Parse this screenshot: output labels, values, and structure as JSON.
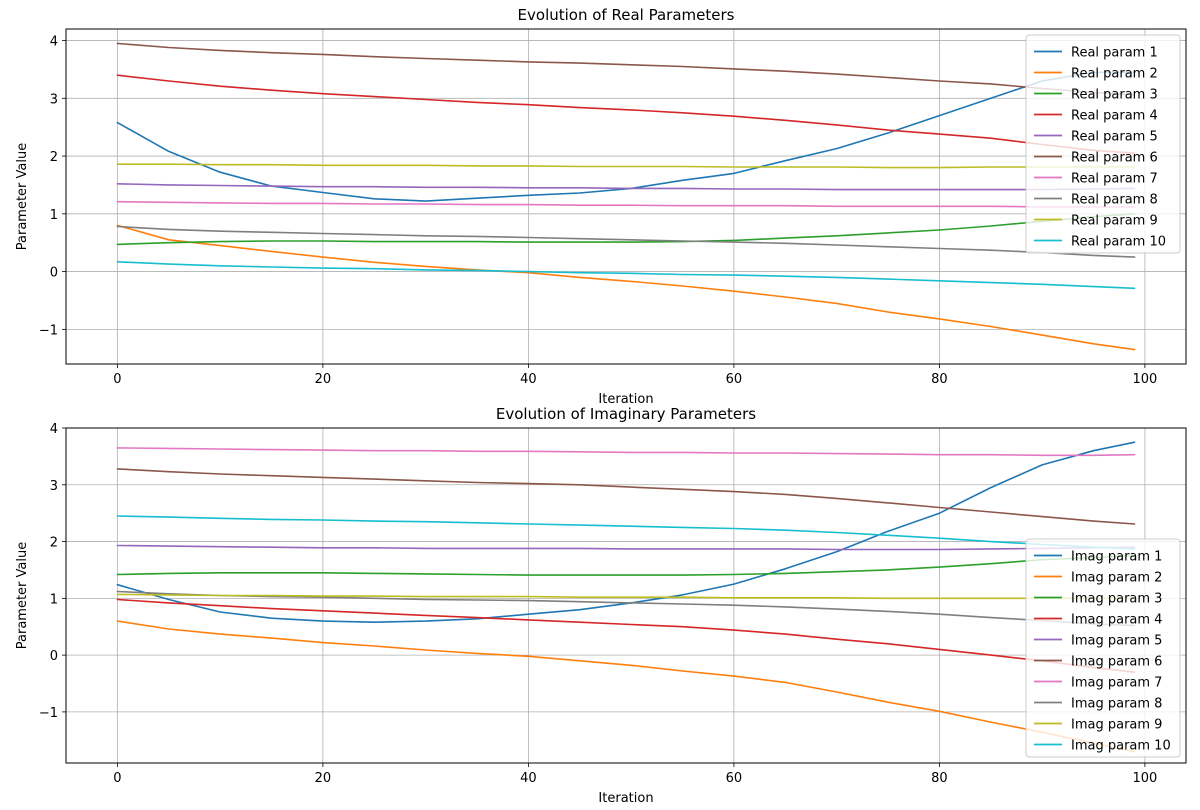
{
  "colors": [
    "#1f77b4",
    "#ff7f0e",
    "#2ca02c",
    "#d62728",
    "#9467bd",
    "#8c564b",
    "#e377c2",
    "#7f7f7f",
    "#bcbd22",
    "#17becf"
  ],
  "chart_data": [
    {
      "type": "line",
      "title": "Evolution of Real Parameters",
      "xlabel": "Iteration",
      "ylabel": "Parameter Value",
      "xlim": [
        -5,
        104
      ],
      "ylim": [
        -1.6,
        4.2
      ],
      "xticks": [
        0,
        20,
        40,
        60,
        80,
        100
      ],
      "yticks": [
        -1,
        0,
        1,
        2,
        3,
        4
      ],
      "xtick_labels": [
        "0",
        "20",
        "40",
        "60",
        "80",
        "100"
      ],
      "ytick_labels": [
        "−1",
        "0",
        "1",
        "2",
        "3",
        "4"
      ],
      "grid": true,
      "legend_position": "top-right",
      "x": [
        0,
        5,
        10,
        15,
        20,
        25,
        30,
        35,
        40,
        45,
        50,
        55,
        60,
        65,
        70,
        75,
        80,
        85,
        90,
        95,
        99
      ],
      "series": [
        {
          "name": "Real param 1",
          "values": [
            2.58,
            2.08,
            1.72,
            1.48,
            1.37,
            1.26,
            1.22,
            1.27,
            1.32,
            1.36,
            1.44,
            1.58,
            1.7,
            1.92,
            2.13,
            2.4,
            2.7,
            3.0,
            3.3,
            3.45,
            3.45
          ]
        },
        {
          "name": "Real param 2",
          "values": [
            0.8,
            0.55,
            0.45,
            0.35,
            0.25,
            0.16,
            0.09,
            0.03,
            -0.02,
            -0.1,
            -0.17,
            -0.25,
            -0.34,
            -0.44,
            -0.55,
            -0.7,
            -0.82,
            -0.95,
            -1.1,
            -1.25,
            -1.35
          ]
        },
        {
          "name": "Real param 3",
          "values": [
            0.47,
            0.5,
            0.52,
            0.53,
            0.53,
            0.52,
            0.52,
            0.52,
            0.51,
            0.51,
            0.51,
            0.52,
            0.54,
            0.58,
            0.62,
            0.67,
            0.72,
            0.79,
            0.87,
            0.95,
            1.0
          ]
        },
        {
          "name": "Real param 4",
          "values": [
            3.4,
            3.3,
            3.21,
            3.14,
            3.08,
            3.03,
            2.98,
            2.93,
            2.89,
            2.84,
            2.8,
            2.75,
            2.69,
            2.62,
            2.54,
            2.45,
            2.38,
            2.31,
            2.2,
            2.1,
            2.05
          ]
        },
        {
          "name": "Real param 5",
          "values": [
            1.52,
            1.5,
            1.49,
            1.48,
            1.47,
            1.47,
            1.46,
            1.46,
            1.45,
            1.45,
            1.44,
            1.44,
            1.43,
            1.43,
            1.42,
            1.42,
            1.42,
            1.42,
            1.42,
            1.43,
            1.44
          ]
        },
        {
          "name": "Real param 6",
          "values": [
            3.95,
            3.88,
            3.83,
            3.79,
            3.76,
            3.72,
            3.69,
            3.66,
            3.63,
            3.61,
            3.58,
            3.55,
            3.51,
            3.47,
            3.42,
            3.36,
            3.3,
            3.25,
            3.17,
            3.1,
            3.06
          ]
        },
        {
          "name": "Real param 7",
          "values": [
            1.21,
            1.2,
            1.19,
            1.18,
            1.18,
            1.17,
            1.17,
            1.16,
            1.16,
            1.15,
            1.15,
            1.14,
            1.14,
            1.14,
            1.13,
            1.13,
            1.13,
            1.13,
            1.12,
            1.12,
            1.12
          ]
        },
        {
          "name": "Real param 8",
          "values": [
            0.78,
            0.73,
            0.7,
            0.68,
            0.66,
            0.64,
            0.62,
            0.61,
            0.59,
            0.57,
            0.55,
            0.53,
            0.51,
            0.49,
            0.46,
            0.43,
            0.4,
            0.37,
            0.33,
            0.28,
            0.25
          ]
        },
        {
          "name": "Real param 9",
          "values": [
            1.86,
            1.86,
            1.85,
            1.85,
            1.84,
            1.84,
            1.84,
            1.83,
            1.83,
            1.82,
            1.82,
            1.82,
            1.81,
            1.81,
            1.81,
            1.8,
            1.8,
            1.81,
            1.81,
            1.81,
            1.81
          ]
        },
        {
          "name": "Real param 10",
          "values": [
            0.17,
            0.13,
            0.1,
            0.08,
            0.06,
            0.05,
            0.03,
            0.02,
            0.0,
            -0.02,
            -0.03,
            -0.05,
            -0.06,
            -0.08,
            -0.1,
            -0.13,
            -0.16,
            -0.19,
            -0.22,
            -0.26,
            -0.29
          ]
        }
      ]
    },
    {
      "type": "line",
      "title": "Evolution of Imaginary Parameters",
      "xlabel": "Iteration",
      "ylabel": "Parameter Value",
      "xlim": [
        -5,
        104
      ],
      "ylim": [
        -1.9,
        4.0
      ],
      "xticks": [
        0,
        20,
        40,
        60,
        80,
        100
      ],
      "yticks": [
        -1,
        0,
        1,
        2,
        3,
        4
      ],
      "xtick_labels": [
        "0",
        "20",
        "40",
        "60",
        "80",
        "100"
      ],
      "ytick_labels": [
        "−1",
        "0",
        "1",
        "2",
        "3",
        "4"
      ],
      "grid": true,
      "legend_position": "lower-right",
      "x": [
        0,
        5,
        10,
        15,
        20,
        25,
        30,
        35,
        40,
        45,
        50,
        55,
        60,
        65,
        70,
        75,
        80,
        85,
        90,
        95,
        99
      ],
      "series": [
        {
          "name": "Imag param 1",
          "values": [
            1.24,
            0.98,
            0.76,
            0.65,
            0.6,
            0.58,
            0.6,
            0.64,
            0.72,
            0.8,
            0.92,
            1.06,
            1.25,
            1.52,
            1.82,
            2.18,
            2.5,
            2.95,
            3.35,
            3.6,
            3.75
          ]
        },
        {
          "name": "Imag param 2",
          "values": [
            0.6,
            0.46,
            0.37,
            0.3,
            0.22,
            0.16,
            0.09,
            0.03,
            -0.02,
            -0.1,
            -0.18,
            -0.28,
            -0.37,
            -0.48,
            -0.65,
            -0.83,
            -0.99,
            -1.18,
            -1.36,
            -1.55,
            -1.7
          ]
        },
        {
          "name": "Imag param 3",
          "values": [
            1.42,
            1.44,
            1.45,
            1.45,
            1.45,
            1.44,
            1.43,
            1.42,
            1.41,
            1.41,
            1.41,
            1.41,
            1.42,
            1.44,
            1.47,
            1.5,
            1.55,
            1.61,
            1.68,
            1.72,
            1.75
          ]
        },
        {
          "name": "Imag param 4",
          "values": [
            0.98,
            0.92,
            0.87,
            0.82,
            0.78,
            0.74,
            0.7,
            0.66,
            0.62,
            0.58,
            0.54,
            0.5,
            0.44,
            0.37,
            0.28,
            0.2,
            0.1,
            0.0,
            -0.1,
            -0.22,
            -0.3
          ]
        },
        {
          "name": "Imag param 5",
          "values": [
            1.93,
            1.92,
            1.91,
            1.9,
            1.89,
            1.89,
            1.88,
            1.88,
            1.88,
            1.88,
            1.87,
            1.87,
            1.87,
            1.87,
            1.86,
            1.86,
            1.86,
            1.87,
            1.88,
            1.89,
            1.9
          ]
        },
        {
          "name": "Imag param 6",
          "values": [
            3.28,
            3.23,
            3.19,
            3.16,
            3.13,
            3.1,
            3.07,
            3.04,
            3.02,
            3.0,
            2.96,
            2.92,
            2.88,
            2.83,
            2.76,
            2.68,
            2.6,
            2.52,
            2.44,
            2.36,
            2.31
          ]
        },
        {
          "name": "Imag param 7",
          "values": [
            3.65,
            3.64,
            3.63,
            3.62,
            3.61,
            3.6,
            3.6,
            3.59,
            3.59,
            3.58,
            3.57,
            3.57,
            3.56,
            3.56,
            3.55,
            3.54,
            3.53,
            3.53,
            3.52,
            3.52,
            3.53
          ]
        },
        {
          "name": "Imag param 8",
          "values": [
            1.12,
            1.08,
            1.05,
            1.03,
            1.02,
            1.0,
            0.98,
            0.97,
            0.96,
            0.94,
            0.92,
            0.9,
            0.88,
            0.85,
            0.81,
            0.77,
            0.72,
            0.66,
            0.61,
            0.55,
            0.52
          ]
        },
        {
          "name": "Imag param 9",
          "values": [
            1.07,
            1.06,
            1.05,
            1.05,
            1.04,
            1.04,
            1.03,
            1.03,
            1.03,
            1.02,
            1.02,
            1.02,
            1.01,
            1.01,
            1.01,
            1.0,
            1.0,
            1.0,
            1.0,
            1.0,
            1.0
          ]
        },
        {
          "name": "Imag param 10",
          "values": [
            2.45,
            2.43,
            2.41,
            2.39,
            2.38,
            2.36,
            2.35,
            2.33,
            2.31,
            2.29,
            2.27,
            2.25,
            2.23,
            2.2,
            2.16,
            2.11,
            2.06,
            2.0,
            1.95,
            1.9,
            1.87
          ]
        }
      ]
    }
  ]
}
